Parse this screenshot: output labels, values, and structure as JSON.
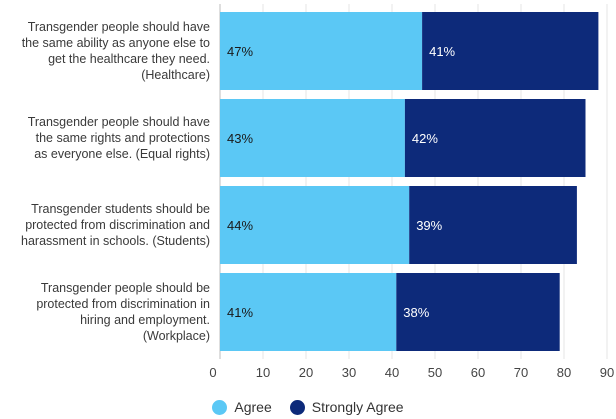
{
  "chart_data": {
    "type": "bar",
    "orientation": "horizontal",
    "stacked": true,
    "categories": [
      "Transgender people should have the same ability as anyone else to get the healthcare they need. (Healthcare)",
      "Transgender people should have the same rights and protections as everyone else. (Equal rights)",
      "Transgender students should be protected from discrimination and harassment in schools. (Students)",
      "Transgender people should be protected from discrimination in hiring and employment. (Workplace)"
    ],
    "category_lines": [
      [
        "Transgender people should have",
        "the same ability as anyone else to",
        "get the healthcare they need.",
        "(Healthcare)"
      ],
      [
        "Transgender people should have",
        "the same rights and protections",
        "as everyone else. (Equal rights)"
      ],
      [
        "Transgender students should be",
        "protected from discrimination and",
        "harassment in schools. (Students)"
      ],
      [
        "Transgender people should be",
        "protected from discrimination in",
        "hiring and employment.",
        "(Workplace)"
      ]
    ],
    "series": [
      {
        "name": "Agree",
        "color": "#5bc8f5",
        "values": [
          47,
          43,
          44,
          41
        ],
        "labels": [
          "47%",
          "43%",
          "44%",
          "41%"
        ]
      },
      {
        "name": "Strongly Agree",
        "color": "#0d2a7a",
        "values": [
          41,
          42,
          39,
          38
        ],
        "labels": [
          "41%",
          "42%",
          "39%",
          "38%"
        ]
      }
    ],
    "xlim": [
      0,
      90
    ],
    "xticks": [
      0,
      10,
      20,
      30,
      40,
      50,
      60,
      70,
      80,
      90
    ],
    "grid": true,
    "legend_position": "bottom-center",
    "colors": {
      "grid": "#e6e6e6",
      "tick_text": "#444444",
      "label_on_light": "#1a1a1a",
      "label_on_dark": "#ffffff"
    }
  }
}
